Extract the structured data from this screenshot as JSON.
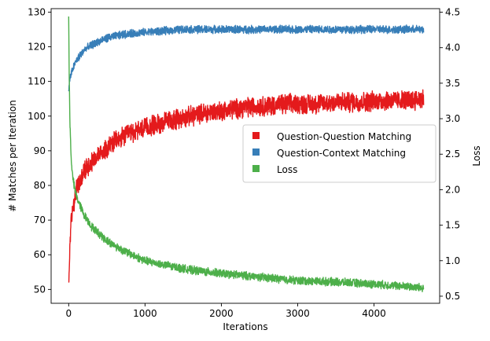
{
  "chart_data": {
    "type": "line",
    "title": "",
    "xlabel": "Iterations",
    "ylabel_left": "# Matches per Iteration",
    "ylabel_right": "Loss",
    "xlim": [
      -230,
      4860
    ],
    "ylim_left": [
      46,
      131
    ],
    "ylim_right": [
      0.4,
      4.55
    ],
    "x_ticks": [
      0,
      1000,
      2000,
      3000,
      4000
    ],
    "y_left_ticks": [
      50,
      60,
      70,
      80,
      90,
      100,
      110,
      120,
      130
    ],
    "y_right_ticks": [
      0.5,
      1.0,
      1.5,
      2.0,
      2.5,
      3.0,
      3.5,
      4.0,
      4.5
    ],
    "y_right_tick_labels": [
      "0.5",
      "1.0",
      "1.5",
      "2.0",
      "2.5",
      "3.0",
      "3.5",
      "4.0",
      "4.5"
    ],
    "legend_position": "center-right",
    "series": [
      {
        "name": "Question-Question Matching",
        "axis": "left",
        "color": "#e41a1c",
        "x": [
          0,
          20,
          50,
          100,
          150,
          200,
          300,
          400,
          500,
          600,
          800,
          1000,
          1200,
          1500,
          1800,
          2000,
          2300,
          2600,
          2900,
          3200,
          3500,
          3800,
          4100,
          4400,
          4650
        ],
        "y": [
          50,
          66,
          73,
          79,
          81,
          84,
          87,
          89,
          91,
          92.5,
          95,
          96.5,
          98,
          99.5,
          101,
          101.5,
          102.5,
          103,
          103.5,
          103.5,
          104,
          104,
          104.5,
          104.5,
          105
        ],
        "noise": 2.5
      },
      {
        "name": "Question-Context Matching",
        "axis": "left",
        "color": "#377eb8",
        "x": [
          0,
          10,
          30,
          60,
          100,
          150,
          200,
          300,
          400,
          500,
          700,
          900,
          1200,
          1500,
          2000,
          2500,
          3000,
          3500,
          4000,
          4650
        ],
        "y": [
          107,
          110,
          112,
          114,
          116,
          117.5,
          119,
          120.5,
          121.5,
          122.5,
          123.5,
          124,
          124.5,
          125,
          125,
          125,
          125,
          125,
          125,
          125
        ],
        "noise": 1.0
      },
      {
        "name": "Loss",
        "axis": "right",
        "color": "#4daf4a",
        "x": [
          0,
          5,
          15,
          30,
          50,
          80,
          120,
          200,
          300,
          400,
          500,
          700,
          1000,
          1300,
          1600,
          2000,
          2500,
          3000,
          3500,
          4000,
          4500,
          4650
        ],
        "y": [
          4.45,
          3.8,
          3.0,
          2.5,
          2.2,
          2.0,
          1.85,
          1.65,
          1.48,
          1.38,
          1.28,
          1.15,
          1.0,
          0.93,
          0.87,
          0.82,
          0.77,
          0.72,
          0.7,
          0.67,
          0.63,
          0.62
        ],
        "noise": 0.05
      }
    ]
  }
}
